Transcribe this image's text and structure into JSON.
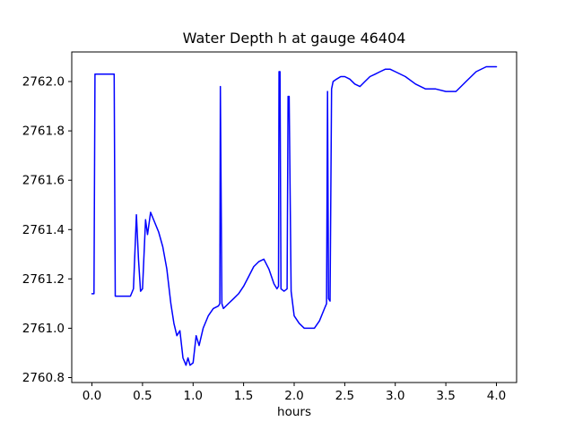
{
  "chart_data": {
    "type": "line",
    "title": "Water Depth h at gauge 46404",
    "xlabel": "hours",
    "ylabel": "",
    "line_color": "#0000ff",
    "background_color": "#ffffff",
    "grid": false,
    "legend": "none",
    "xlim": [
      -0.2,
      4.2
    ],
    "ylim": [
      2760.78,
      2762.12
    ],
    "xticks": [
      0.0,
      0.5,
      1.0,
      1.5,
      2.0,
      2.5,
      3.0,
      3.5,
      4.0
    ],
    "xtick_labels": [
      "0.0",
      "0.5",
      "1.0",
      "1.5",
      "2.0",
      "2.5",
      "3.0",
      "3.5",
      "4.0"
    ],
    "yticks": [
      2760.8,
      2761.0,
      2761.2,
      2761.4,
      2761.6,
      2761.8,
      2762.0
    ],
    "ytick_labels": [
      "2760.8",
      "2761.0",
      "2761.2",
      "2761.4",
      "2761.6",
      "2761.8",
      "2762.0"
    ],
    "series": [
      {
        "name": "Water Depth h",
        "x": [
          0.0,
          0.02,
          0.03,
          0.22,
          0.23,
          0.38,
          0.41,
          0.44,
          0.46,
          0.48,
          0.5,
          0.53,
          0.55,
          0.58,
          0.62,
          0.66,
          0.7,
          0.74,
          0.78,
          0.81,
          0.84,
          0.87,
          0.9,
          0.93,
          0.95,
          0.97,
          1.0,
          1.03,
          1.06,
          1.1,
          1.15,
          1.2,
          1.25,
          1.265,
          1.27,
          1.285,
          1.3,
          1.35,
          1.4,
          1.45,
          1.5,
          1.55,
          1.6,
          1.65,
          1.7,
          1.75,
          1.8,
          1.83,
          1.845,
          1.85,
          1.86,
          1.87,
          1.9,
          1.93,
          1.94,
          1.95,
          1.97,
          2.0,
          2.05,
          2.1,
          2.15,
          2.2,
          2.25,
          2.3,
          2.32,
          2.33,
          2.34,
          2.355,
          2.37,
          2.385,
          2.42,
          2.46,
          2.5,
          2.55,
          2.6,
          2.65,
          2.7,
          2.75,
          2.8,
          2.85,
          2.9,
          2.95,
          3.0,
          3.1,
          3.2,
          3.3,
          3.4,
          3.5,
          3.6,
          3.7,
          3.8,
          3.9,
          4.0
        ],
        "y": [
          2761.14,
          2761.14,
          2762.03,
          2762.03,
          2761.13,
          2761.13,
          2761.16,
          2761.46,
          2761.28,
          2761.15,
          2761.16,
          2761.44,
          2761.38,
          2761.47,
          2761.43,
          2761.39,
          2761.33,
          2761.24,
          2761.1,
          2761.02,
          2760.97,
          2760.99,
          2760.88,
          2760.85,
          2760.88,
          2760.85,
          2760.86,
          2760.97,
          2760.93,
          2761.0,
          2761.05,
          2761.08,
          2761.09,
          2761.1,
          2761.98,
          2761.1,
          2761.08,
          2761.1,
          2761.12,
          2761.14,
          2761.17,
          2761.21,
          2761.25,
          2761.27,
          2761.28,
          2761.24,
          2761.18,
          2761.16,
          2761.17,
          2762.04,
          2762.04,
          2761.16,
          2761.15,
          2761.16,
          2761.94,
          2761.94,
          2761.15,
          2761.05,
          2761.02,
          2761.0,
          2761.0,
          2761.0,
          2761.03,
          2761.08,
          2761.1,
          2761.96,
          2761.12,
          2761.11,
          2761.97,
          2762.0,
          2762.01,
          2762.02,
          2762.02,
          2762.01,
          2761.99,
          2761.98,
          2762.0,
          2762.02,
          2762.03,
          2762.04,
          2762.05,
          2762.05,
          2762.04,
          2762.02,
          2761.99,
          2761.97,
          2761.97,
          2761.96,
          2761.96,
          2762.0,
          2762.04,
          2762.06,
          2762.06
        ]
      }
    ]
  }
}
